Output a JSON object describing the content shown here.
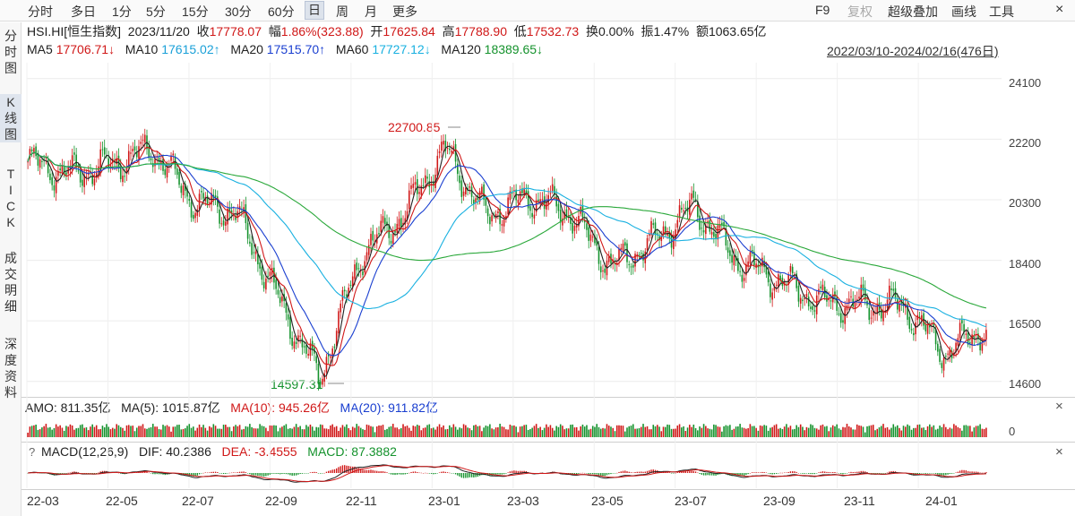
{
  "toolbar": {
    "periods": [
      "分时",
      "多日",
      "1分",
      "5分",
      "15分",
      "30分",
      "60分",
      "日",
      "周",
      "月",
      "更多"
    ],
    "active_period": "日",
    "f9": "F9",
    "restore": "复权",
    "overlay": "超级叠加",
    "draw": "画线",
    "tools": "工具"
  },
  "sidebar": {
    "tabs": [
      "分时图",
      "K线图",
      "TICK",
      "成交明细",
      "深度资料"
    ],
    "active": "K线图"
  },
  "quote": {
    "symbol": "HSI.HI[恒生指数]",
    "date": "2023/11/20",
    "close_label": "收",
    "close": "17778.07",
    "change_label": "幅",
    "change": "1.86%(323.88)",
    "open_label": "开",
    "open": "17625.84",
    "high_label": "高",
    "high": "17788.90",
    "low_label": "低",
    "low": "17532.73",
    "turnover_label": "换",
    "turnover": "0.00%",
    "amplitude_label": "振",
    "amplitude": "1.47%",
    "amount_label": "额",
    "amount": "1063.65亿"
  },
  "ma_legend": {
    "ma5": "MA5",
    "ma5_value": "17706.71↓",
    "ma10": "MA10",
    "ma10_value": "17615.02↑",
    "ma20": "MA20",
    "ma20_value": "17515.70↑",
    "ma60": "MA60",
    "ma60_value": "17727.12↓",
    "ma120": "MA120",
    "ma120_value": "18389.65↓"
  },
  "date_range": "2022/03/10-2024/02/16(476日)",
  "amo_legend": {
    "amo": "AMO: 811.35亿",
    "ma5": "MA(5): 1015.87亿",
    "ma10": "MA(10): 945.26亿",
    "ma20": "MA(20): 911.82亿",
    "zero": "0"
  },
  "macd_legend": {
    "help": "?",
    "title": "MACD(12,26,9)",
    "dif": "DIF: 40.2386",
    "dea": "DEA: -3.4555",
    "macd": "MACD: 87.3882"
  },
  "close_icon": "×",
  "colors": {
    "up": "#d01818",
    "down": "#14922c",
    "ma5": "#222222",
    "ma10": "#d01818",
    "ma20": "#1a3fd0",
    "ma60": "#18b0e0",
    "ma120": "#2aa83a"
  },
  "chart_data": {
    "type": "candlestick",
    "x_ticks": [
      "22-03",
      "22-05",
      "22-07",
      "22-09",
      "22-11",
      "23-01",
      "23-03",
      "23-05",
      "23-07",
      "23-09",
      "23-11",
      "24-01"
    ],
    "y_ticks": [
      14600,
      16500,
      18400,
      20300,
      22200,
      24100
    ],
    "ylim": [
      14200,
      24600
    ],
    "annotations": [
      {
        "label": "22700.85",
        "value": 22700.85,
        "kind": "high",
        "month": "23-01"
      },
      {
        "label": "14597.31",
        "value": 14597.31,
        "kind": "low",
        "month": "22-10"
      }
    ],
    "approx_monthly_close": [
      {
        "month": "22-03",
        "close": 21500
      },
      {
        "month": "22-04",
        "close": 21100
      },
      {
        "month": "22-05",
        "close": 21400
      },
      {
        "month": "22-06",
        "close": 21900
      },
      {
        "month": "22-07",
        "close": 20200
      },
      {
        "month": "22-08",
        "close": 19900
      },
      {
        "month": "22-09",
        "close": 17200
      },
      {
        "month": "22-10",
        "close": 14700
      },
      {
        "month": "22-11",
        "close": 18600
      },
      {
        "month": "22-12",
        "close": 19800
      },
      {
        "month": "23-01",
        "close": 21900
      },
      {
        "month": "23-02",
        "close": 19800
      },
      {
        "month": "23-03",
        "close": 20400
      },
      {
        "month": "23-04",
        "close": 19900
      },
      {
        "month": "23-05",
        "close": 18200
      },
      {
        "month": "23-06",
        "close": 19000
      },
      {
        "month": "23-07",
        "close": 20100
      },
      {
        "month": "23-08",
        "close": 18400
      },
      {
        "month": "23-09",
        "close": 17800
      },
      {
        "month": "23-10",
        "close": 17100
      },
      {
        "month": "23-11",
        "close": 17000
      },
      {
        "month": "23-12",
        "close": 17000
      },
      {
        "month": "24-01",
        "close": 15500
      },
      {
        "month": "24-02",
        "close": 16300
      }
    ],
    "series": [
      {
        "name": "MA5"
      },
      {
        "name": "MA10"
      },
      {
        "name": "MA20"
      },
      {
        "name": "MA60"
      },
      {
        "name": "MA120"
      }
    ]
  }
}
